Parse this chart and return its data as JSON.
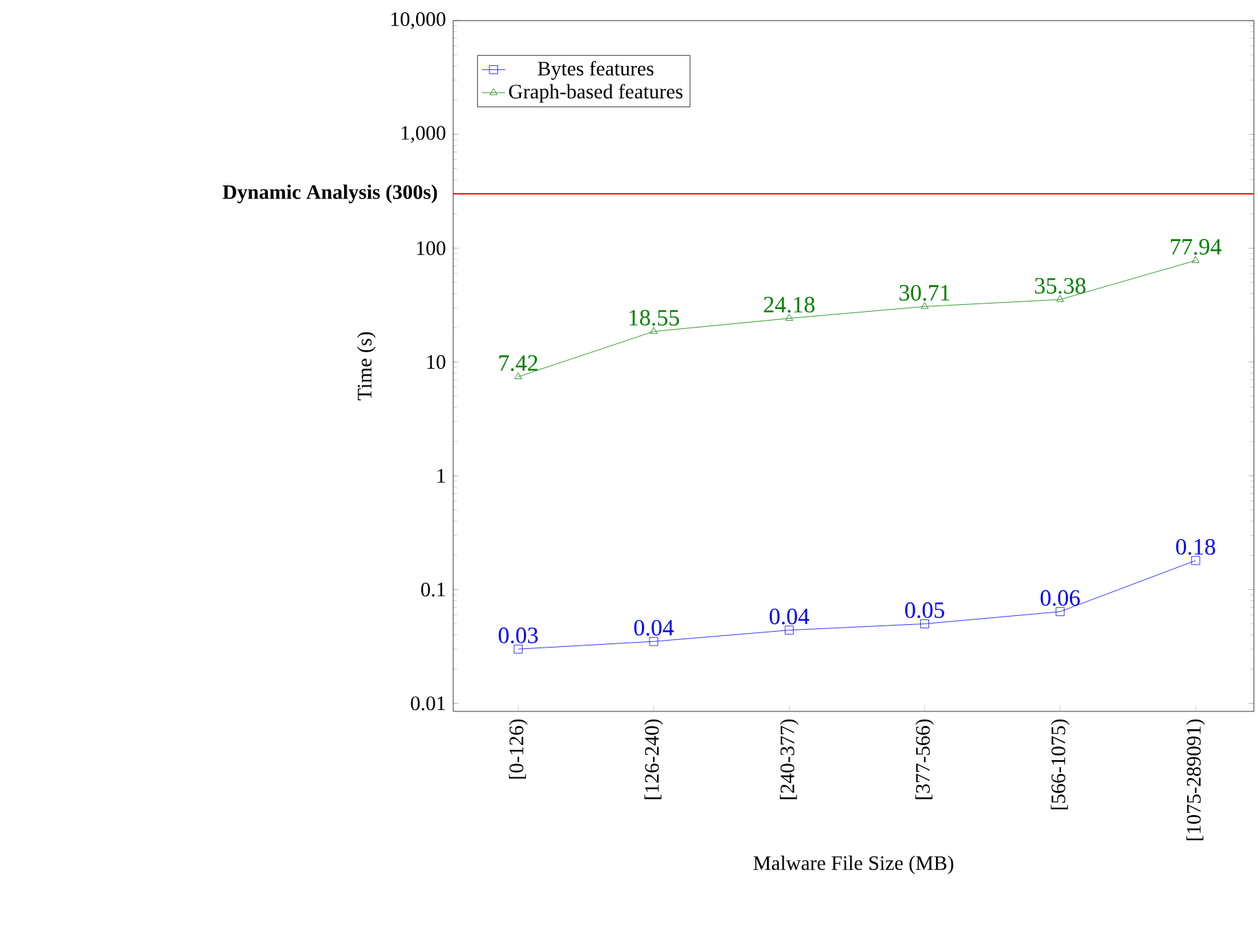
{
  "chart_data": {
    "type": "line",
    "xlabel": "Malware File Size (MB)",
    "ylabel": "Time (s)",
    "log": "y",
    "legend": "top left",
    "categories": [
      "[0-126)",
      "[126-240)",
      "[240-377)",
      "[377-566)",
      "[566-1075)",
      "[1075-289091)"
    ],
    "ylim": [
      0.0085,
      10000
    ],
    "yticks": [
      0.01,
      0.1,
      1,
      10,
      100,
      {
        "value": 1000,
        "label": "1,000"
      },
      {
        "value": 10000,
        "label": "10,000"
      }
    ],
    "series": [
      {
        "name": "Bytes features",
        "color": "#0000ff",
        "marker": "square",
        "values": [
          0.03,
          0.035,
          0.044,
          0.05,
          0.064,
          0.18
        ],
        "value_labels": [
          "0.03",
          "0.04",
          "0.04",
          "0.05",
          "0.06",
          "0.18"
        ]
      },
      {
        "name": "Graph-based features",
        "color": "#008000",
        "marker": "triangle",
        "values": [
          7.42,
          18.55,
          24.18,
          30.71,
          35.38,
          77.94
        ],
        "value_labels": [
          "7.42",
          "18.55",
          "24.18",
          "30.71",
          "35.38",
          "77.94"
        ]
      }
    ],
    "ref_lines": [
      {
        "axis": "y",
        "value": 300,
        "label": "**Dynamic Analysis (300s)**",
        "color": "#ff0000"
      }
    ]
  }
}
